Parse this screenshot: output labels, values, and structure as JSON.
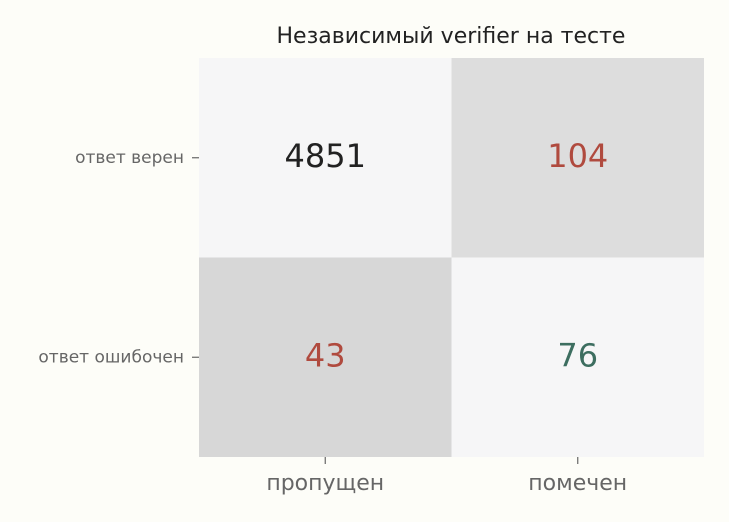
{
  "chart_data": {
    "type": "heatmap",
    "title": "Независимый verifier на тесте",
    "rows": [
      "ответ верен",
      "ответ ошибочен"
    ],
    "columns": [
      "пропущен",
      "помечен"
    ],
    "values": [
      [
        4851,
        104
      ],
      [
        43,
        76
      ]
    ],
    "cell_colors": [
      [
        "#f6f6f7",
        "#dddddd"
      ],
      [
        "#d7d7d7",
        "#f6f6f7"
      ]
    ],
    "text_colors": [
      [
        "#222222",
        "#b04a3e"
      ],
      [
        "#b04a3e",
        "#3d6e60"
      ]
    ]
  }
}
